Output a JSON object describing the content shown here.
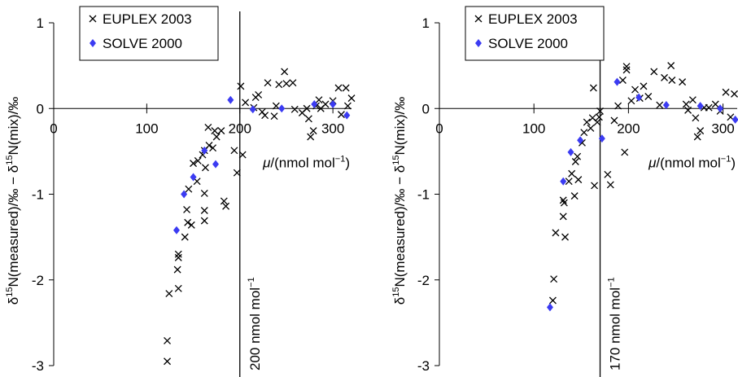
{
  "chart_data": [
    {
      "type": "scatter",
      "ylabel": [
        "δ",
        "15",
        "N(measured)/‰ − ",
        "δ",
        "15",
        "N(mix)/‰"
      ],
      "xlabel": [
        "μ",
        "/(nmol mol",
        "−1",
        ")"
      ],
      "xlim": [
        0,
        320
      ],
      "xticks": [
        0,
        100,
        200,
        300
      ],
      "ylim": [
        -3,
        1
      ],
      "yticks": [
        -3,
        -2,
        -1,
        0,
        1
      ],
      "vline": 200,
      "vline_label": [
        "200 nmol mol",
        "−1"
      ],
      "series": [
        {
          "name": "EUPLEX 2003",
          "color": "#000000",
          "marker": "x",
          "x": [
            122,
            122,
            124,
            134,
            133,
            134,
            134,
            141,
            144,
            148,
            143,
            145,
            154,
            150,
            155,
            160,
            162,
            163,
            162,
            162,
            162,
            167,
            171,
            175,
            173,
            166,
            180,
            183,
            185,
            194,
            197,
            203,
            201,
            206,
            215,
            217,
            220,
            224,
            230,
            227,
            237,
            239,
            242,
            248,
            250,
            257,
            259,
            267,
            272,
            274,
            276,
            279,
            282,
            285,
            287,
            292,
            300,
            306,
            309,
            314,
            316,
            320
          ],
          "values": [
            -2.71,
            -2.95,
            -2.16,
            -2.1,
            -1.88,
            -1.7,
            -1.74,
            -1.5,
            -1.33,
            -1.36,
            -1.18,
            -0.94,
            -0.85,
            -0.64,
            -0.61,
            -0.54,
            -0.49,
            -0.69,
            -0.99,
            -1.19,
            -1.31,
            -0.43,
            -0.46,
            -0.33,
            -0.26,
            -0.22,
            -0.26,
            -1.08,
            -1.14,
            -0.49,
            -0.75,
            -0.54,
            0.26,
            0.07,
            0.01,
            0.13,
            0.16,
            -0.04,
            0.3,
            -0.08,
            -0.09,
            0.03,
            0.28,
            0.43,
            0.29,
            0.3,
            -0.01,
            -0.05,
            0,
            -0.12,
            -0.33,
            -0.26,
            0.03,
            0.1,
            0,
            0.05,
            0.09,
            0.24,
            -0.07,
            0.24,
            0.03,
            0.12
          ]
        },
        {
          "name": "SOLVE 2000",
          "color": "#3b3bf2",
          "marker": "diamond",
          "x": [
            132,
            140,
            150,
            162,
            174,
            190,
            214,
            245,
            280,
            300,
            315
          ],
          "values": [
            -1.42,
            -1.0,
            -0.8,
            -0.49,
            -0.65,
            0.1,
            -0.01,
            0,
            0.05,
            0.05,
            -0.08
          ]
        }
      ]
    },
    {
      "type": "scatter",
      "ylabel": [
        "δ",
        "15",
        "N(measured)/‰ − ",
        "δ",
        "15",
        "N(mix)/‰"
      ],
      "xlabel": [
        "μ",
        "/(nmol mol",
        "−1",
        ")"
      ],
      "xlim": [
        0,
        315
      ],
      "xticks": [
        0,
        100,
        200,
        300
      ],
      "ylim": [
        -3,
        1
      ],
      "yticks": [
        -3,
        -2,
        -1,
        0,
        1
      ],
      "vline": 170,
      "vline_label": [
        "170 nmol mol",
        "−1"
      ],
      "series": [
        {
          "name": "EUPLEX 2003",
          "color": "#000000",
          "marker": "x",
          "x": [
            120,
            121,
            123,
            131,
            132,
            133,
            131,
            137,
            140,
            144,
            146,
            143,
            147,
            151,
            153,
            156,
            160,
            162,
            163,
            164,
            167,
            169,
            170,
            178,
            181,
            185,
            189,
            194,
            198,
            198,
            196,
            203,
            207,
            212,
            216,
            221,
            227,
            233,
            238,
            245,
            246,
            257,
            261,
            263,
            268,
            271,
            273,
            276,
            280,
            285,
            292,
            297,
            303,
            308,
            312
          ],
          "values": [
            -2.24,
            -1.99,
            -1.45,
            -1.26,
            -1.1,
            -1.5,
            -1.07,
            -0.85,
            -0.76,
            -0.62,
            -0.56,
            -1.02,
            -0.83,
            -0.4,
            -0.28,
            -0.16,
            -0.23,
            -0.11,
            0.24,
            -0.9,
            -0.16,
            -0.1,
            -0.03,
            -0.77,
            -0.89,
            -0.14,
            0.03,
            0.33,
            0.49,
            0.45,
            -0.51,
            0.09,
            0.22,
            0.12,
            0.26,
            0.14,
            0.43,
            0.04,
            0.36,
            0.5,
            0.33,
            0.31,
            0.05,
            -0.02,
            0.1,
            -0.11,
            -0.33,
            -0.26,
            0.01,
            0.01,
            0.05,
            -0.03,
            0.19,
            -0.1,
            0.17
          ]
        },
        {
          "name": "SOLVE 2000",
          "color": "#3b3bf2",
          "marker": "diamond",
          "x": [
            117,
            131,
            139,
            149,
            172,
            188,
            211,
            240,
            276,
            297,
            313
          ],
          "values": [
            -2.32,
            -0.85,
            -0.51,
            -0.37,
            -0.35,
            0.31,
            0.13,
            0.04,
            0.03,
            0,
            -0.13
          ]
        }
      ]
    }
  ]
}
